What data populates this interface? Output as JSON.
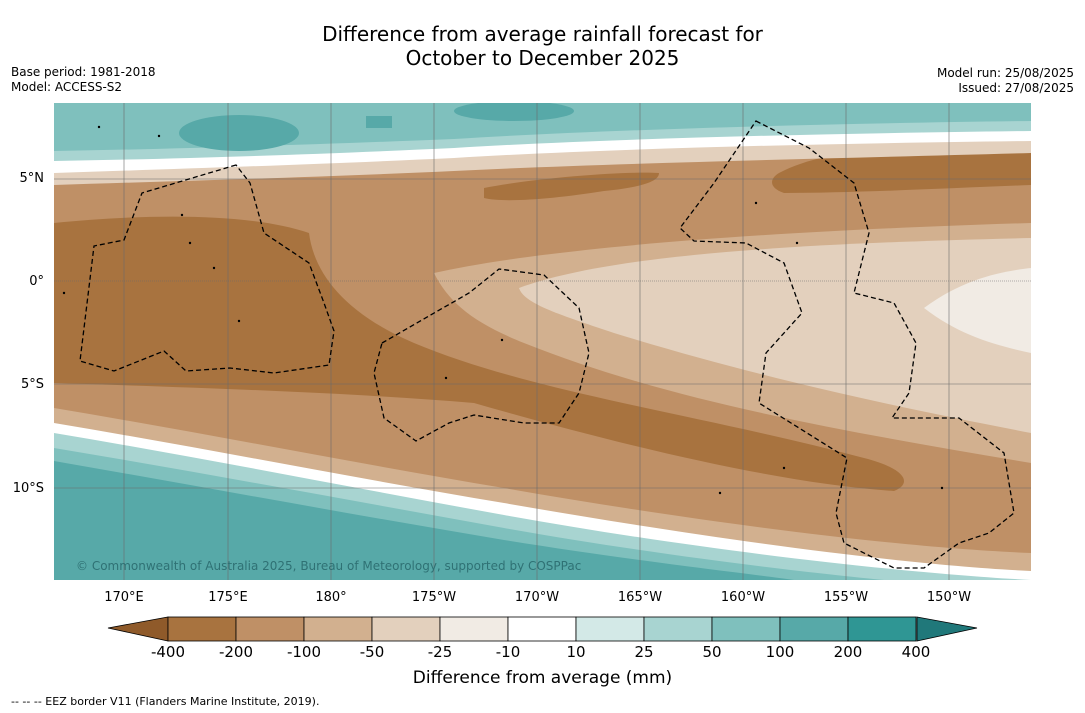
{
  "title_line1": "Difference from average rainfall forecast for",
  "title_line2": "October to December 2025",
  "meta_left": {
    "base_period": "Base period: 1981-2018",
    "model": "Model: ACCESS-S2"
  },
  "meta_right": {
    "model_run": "Model run: 25/08/2025",
    "issued": "Issued: 27/08/2025"
  },
  "latitude_labels": [
    "5°N",
    "0°",
    "5°S",
    "10°S"
  ],
  "longitude_labels": [
    "170°E",
    "175°E",
    "180°",
    "175°W",
    "170°W",
    "165°W",
    "160°W",
    "155°W",
    "150°W"
  ],
  "copyright": "© Commonwealth of Australia 2025, Bureau of Meteorology, supported by COSPPac",
  "colorbar": {
    "ticks": [
      "-400",
      "-200",
      "-100",
      "-50",
      "-25",
      "-10",
      "10",
      "25",
      "50",
      "100",
      "200",
      "400"
    ],
    "colors": [
      "#a8733f",
      "#bf9066",
      "#d2b08f",
      "#e3d0bd",
      "#f1ebe4",
      "#ffffff",
      "#d3e9e7",
      "#a8d4d1",
      "#7fc0bd",
      "#57a9a8",
      "#2f9694"
    ],
    "under_color": "#8f5a2a",
    "over_color": "#20787a",
    "label": "Difference from average (mm)"
  },
  "footer": "--  --  -- EEZ border V11 (Flanders Marine Institute, 2019)."
}
